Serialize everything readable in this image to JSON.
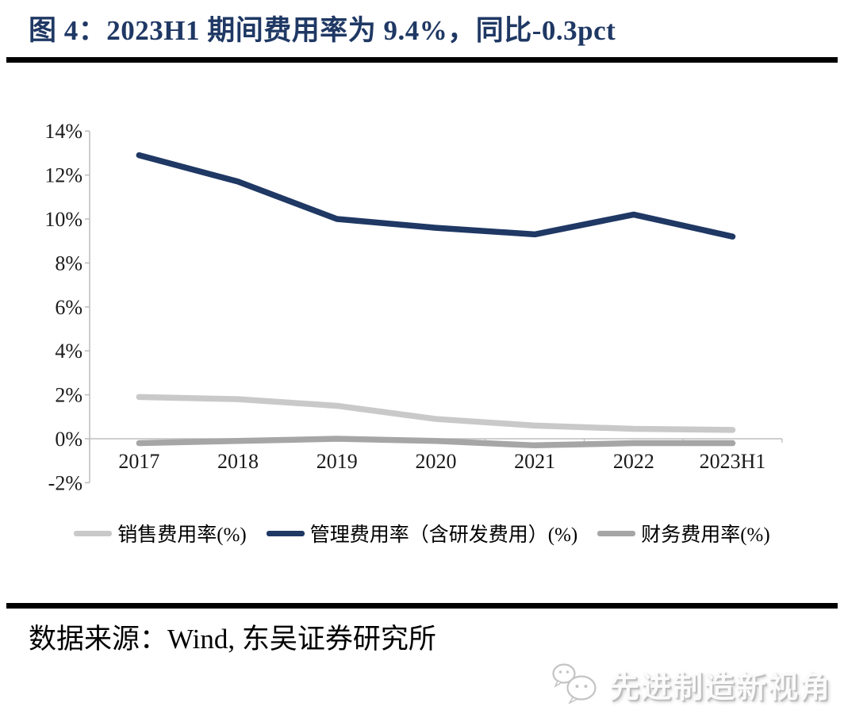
{
  "page": {
    "title": "图 4：2023H1 期间费用率为 9.4%，同比-0.3pct",
    "source_label": "数据来源：Wind, 东吴证券研究所",
    "watermark_text": "先进制造新视角"
  },
  "colors": {
    "title": "#1f3864",
    "divider": "#000000",
    "axis": "#bfbfbf",
    "tick_label": "#1a1a1a",
    "legend_label": "#000000",
    "watermark": "#c9c9c9"
  },
  "chart_data": {
    "type": "line",
    "title": "2023H1 期间费用率为 9.4%，同比-0.3pct",
    "categories": [
      "2017",
      "2018",
      "2019",
      "2020",
      "2021",
      "2022",
      "2023H1"
    ],
    "series": [
      {
        "name": "销售费用率(%)",
        "color": "#c9c9c9",
        "values": [
          1.9,
          1.8,
          1.5,
          0.9,
          0.6,
          0.45,
          0.4
        ]
      },
      {
        "name": "管理费用率（含研发费用）(%)",
        "color": "#1f3864",
        "values": [
          12.9,
          11.7,
          10.0,
          9.6,
          9.3,
          10.2,
          9.2
        ]
      },
      {
        "name": "财务费用率(%)",
        "color": "#a6a6a6",
        "values": [
          -0.2,
          -0.1,
          0.0,
          -0.1,
          -0.3,
          -0.2,
          -0.2
        ]
      }
    ],
    "y_ticks": [
      {
        "label": "14%",
        "value": 14
      },
      {
        "label": "12%",
        "value": 12
      },
      {
        "label": "10%",
        "value": 10
      },
      {
        "label": "8%",
        "value": 8
      },
      {
        "label": "6%",
        "value": 6
      },
      {
        "label": "4%",
        "value": 4
      },
      {
        "label": "2%",
        "value": 2
      },
      {
        "label": "0%",
        "value": 0
      },
      {
        "label": "-2%",
        "value": -2
      }
    ],
    "ylim": [
      -2,
      14
    ],
    "xlabel": "",
    "ylabel": "",
    "grid": false,
    "legend_position": "bottom"
  }
}
